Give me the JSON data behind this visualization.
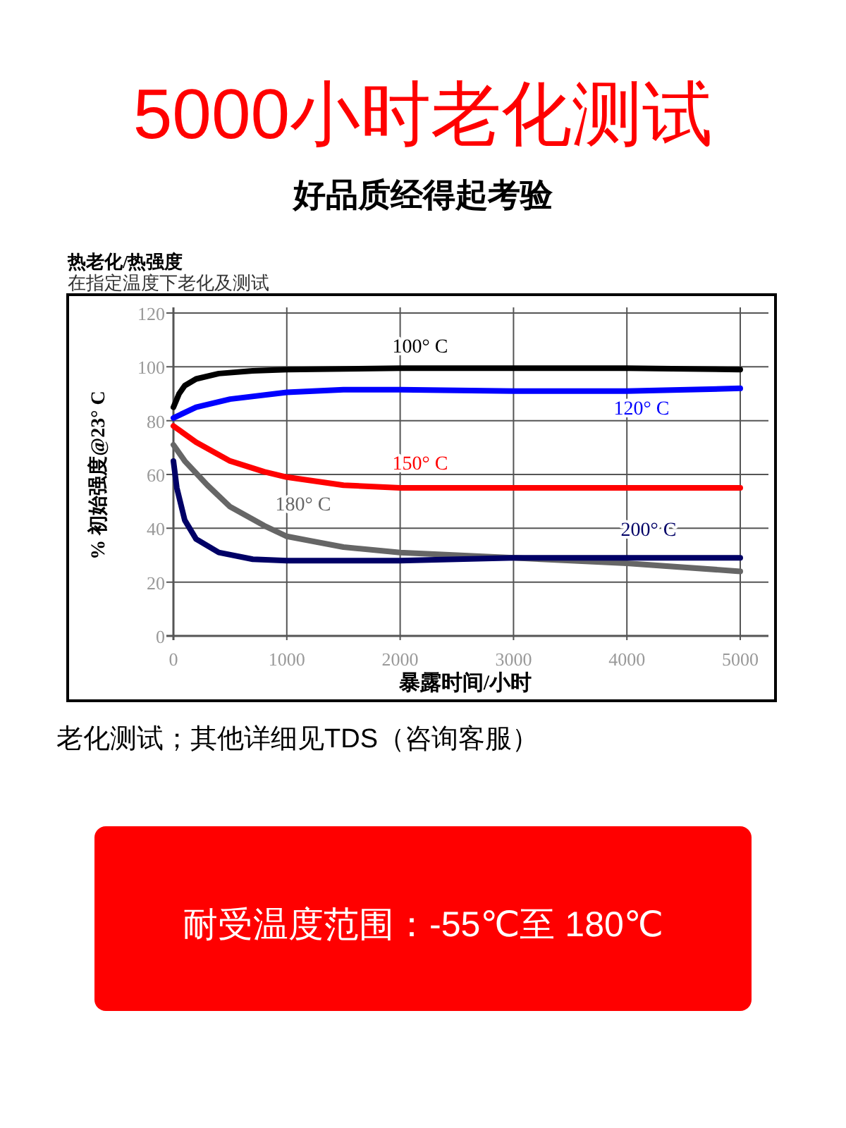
{
  "chart_data": {
    "type": "line",
    "title": "5000小时老化测试",
    "subtitle": "好品质经得起考验",
    "xlabel": "暴露时间/小时",
    "ylabel": "% 初始强度@23° C",
    "annotations": [
      "热老化/热强度",
      "在指定温度下老化及测试",
      "老化测试；其他详细见TDS（咨询客服）",
      "耐受温度范围：-55℃至 180℃"
    ],
    "xlim": [
      0,
      5000
    ],
    "ylim": [
      0,
      120
    ],
    "xticks": [
      0,
      1000,
      2000,
      3000,
      4000,
      5000
    ],
    "yticks": [
      0,
      20,
      40,
      60,
      80,
      100,
      120
    ],
    "grid": true,
    "line_style": "solid",
    "series": [
      {
        "name": "100° C",
        "color": "#000000",
        "x": [
          0,
          50,
          100,
          200,
          400,
          700,
          1000,
          2000,
          3000,
          4000,
          5000
        ],
        "values": [
          85,
          90,
          93,
          95.5,
          97.5,
          98.5,
          99,
          99.5,
          99.5,
          99.5,
          99
        ]
      },
      {
        "name": "120° C",
        "color": "#0000ff",
        "x": [
          0,
          200,
          500,
          1000,
          1500,
          2000,
          3000,
          4000,
          5000
        ],
        "values": [
          81,
          85,
          88,
          90.5,
          91.5,
          91.5,
          91,
          91,
          92
        ]
      },
      {
        "name": "150° C",
        "color": "#ff0000",
        "x": [
          0,
          200,
          500,
          800,
          1000,
          1500,
          2000,
          3000,
          5000
        ],
        "values": [
          78,
          72,
          65,
          61,
          59,
          56,
          55,
          55,
          55
        ]
      },
      {
        "name": "180° C",
        "color": "#666666",
        "x": [
          0,
          100,
          300,
          500,
          800,
          1000,
          1500,
          2000,
          3000,
          4000,
          5000
        ],
        "values": [
          71,
          65,
          56,
          48,
          41,
          37,
          33,
          31,
          29,
          27,
          24
        ]
      },
      {
        "name": "200° C",
        "color": "#000066",
        "x": [
          0,
          30,
          100,
          200,
          400,
          700,
          1000,
          2000,
          3000,
          4000,
          5000
        ],
        "values": [
          65,
          55,
          43,
          36,
          31,
          28.5,
          28,
          28,
          29,
          29,
          29
        ]
      }
    ]
  }
}
